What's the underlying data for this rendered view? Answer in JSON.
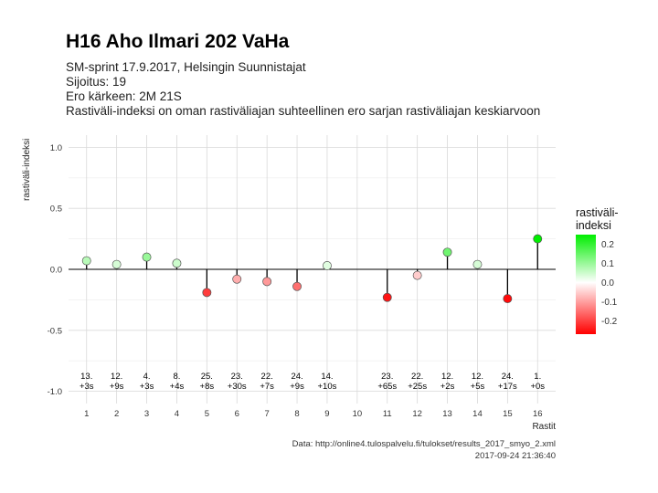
{
  "header": {
    "title": "H16 Aho Ilmari 202 VaHa",
    "lines": [
      "SM-sprint 17.9.2017, Helsingin Suunnistajat",
      "Sijoitus: 19",
      "Ero kärkeen: 2M 21S",
      "Rastiväli-indeksi on oman rastiväliajan suhteellinen ero sarjan rastiväliajan keskiarvoon"
    ]
  },
  "footer": {
    "source": "Data: http://online4.tulospalvelu.fi/tulokset/results_2017_smyo_2.xml",
    "timestamp": "2017-09-24 21:36:40"
  },
  "legend": {
    "title_line1": "rastiväli-",
    "title_line2": "indeksi",
    "ticks": [
      "0.2",
      "0.1",
      "0.0",
      "-0.1",
      "-0.2"
    ],
    "tick_values": [
      0.2,
      0.1,
      0.0,
      -0.1,
      -0.2
    ],
    "range": [
      -0.25,
      0.25
    ],
    "colors": {
      "high": "#00ee00",
      "mid": "#ffffff",
      "low": "#ff0000"
    }
  },
  "chart_data": {
    "type": "scatter",
    "style": "lollipop",
    "title": "H16 Aho Ilmari 202 VaHa",
    "xlabel": "Rastit",
    "ylabel": "rastiväli-indeksi",
    "xlim": [
      0.4,
      16.6
    ],
    "ylim": [
      -1.1,
      1.1
    ],
    "yticks": [
      1.0,
      0.5,
      0.0,
      -0.5,
      -1.0
    ],
    "ytick_labels": [
      "1.0",
      "0.5",
      "0.0",
      "-0.5",
      "-1.0"
    ],
    "xticks": [
      1,
      2,
      3,
      4,
      5,
      6,
      7,
      8,
      9,
      10,
      11,
      12,
      13,
      14,
      15,
      16
    ],
    "grid": true,
    "legend_position": "right",
    "points": [
      {
        "x": 1,
        "y": 0.07,
        "rank": "13.",
        "diff": "+3s"
      },
      {
        "x": 2,
        "y": 0.04,
        "rank": "12.",
        "diff": "+9s"
      },
      {
        "x": 3,
        "y": 0.1,
        "rank": "4.",
        "diff": "+3s"
      },
      {
        "x": 4,
        "y": 0.05,
        "rank": "8.",
        "diff": "+4s"
      },
      {
        "x": 5,
        "y": -0.19,
        "rank": "25.",
        "diff": "+8s"
      },
      {
        "x": 6,
        "y": -0.08,
        "rank": "23.",
        "diff": "+30s"
      },
      {
        "x": 7,
        "y": -0.1,
        "rank": "22.",
        "diff": "+7s"
      },
      {
        "x": 8,
        "y": -0.14,
        "rank": "24.",
        "diff": "+9s"
      },
      {
        "x": 9,
        "y": 0.03,
        "rank": "14.",
        "diff": "+10s"
      },
      {
        "x": 11,
        "y": -0.23,
        "rank": "23.",
        "diff": "+65s"
      },
      {
        "x": 12,
        "y": -0.05,
        "rank": "22.",
        "diff": "+25s"
      },
      {
        "x": 13,
        "y": 0.14,
        "rank": "12.",
        "diff": "+2s"
      },
      {
        "x": 14,
        "y": 0.04,
        "rank": "12.",
        "diff": "+5s"
      },
      {
        "x": 15,
        "y": -0.24,
        "rank": "24.",
        "diff": "+17s"
      },
      {
        "x": 16,
        "y": 0.25,
        "rank": "1.",
        "diff": "+0s"
      }
    ]
  }
}
